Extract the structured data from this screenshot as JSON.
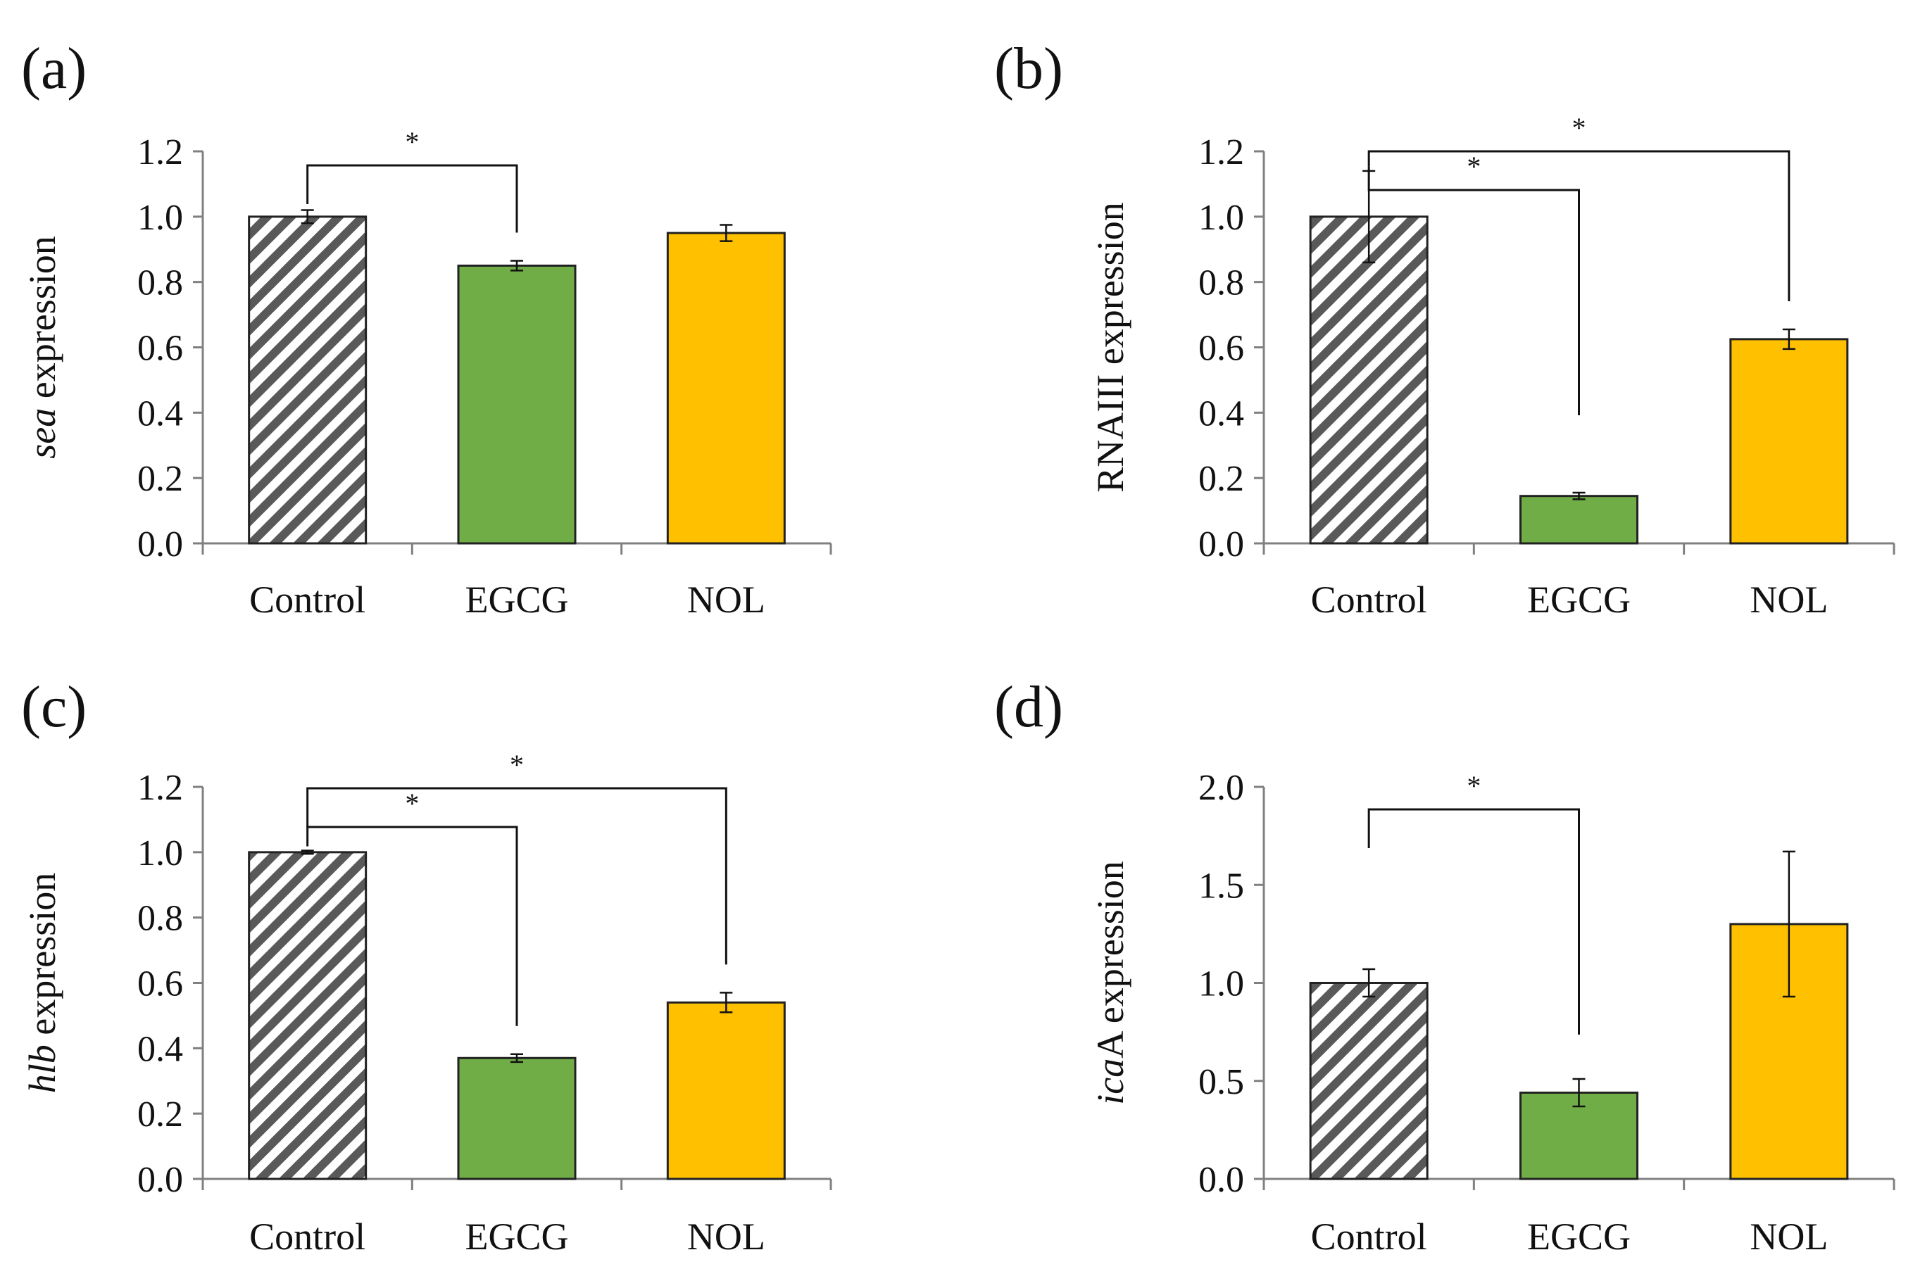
{
  "colors": {
    "control_stripe_dark": "#595959",
    "control_stripe_light": "#ffffff",
    "egcg": "#70ad47",
    "nol": "#ffc000"
  },
  "chart_data": [
    {
      "type": "bar",
      "panel": "(a)",
      "ylabel_italic": "sea",
      "ylabel_rest": " expression",
      "categories": [
        "Control",
        "EGCG",
        "NOL"
      ],
      "values": [
        1.0,
        0.85,
        0.95
      ],
      "errors": [
        0.02,
        0.015,
        0.025
      ],
      "ylim": [
        0,
        1.2
      ],
      "yticks": [
        0.0,
        0.2,
        0.4,
        0.6,
        0.8,
        1.0,
        1.2
      ],
      "tick_labels": [
        "0.0",
        "0.2",
        "0.4",
        "0.6",
        "0.8",
        "1.0",
        "1.2"
      ],
      "significance": [
        {
          "from": 0,
          "to": 1,
          "label": "*"
        }
      ]
    },
    {
      "type": "bar",
      "panel": "(b)",
      "ylabel_italic": "",
      "ylabel_rest": "RNAIII expression",
      "categories": [
        "Control",
        "EGCG",
        "NOL"
      ],
      "values": [
        1.0,
        0.145,
        0.625
      ],
      "errors": [
        0.14,
        0.01,
        0.03
      ],
      "ylim": [
        0,
        1.2
      ],
      "yticks": [
        0.0,
        0.2,
        0.4,
        0.6,
        0.8,
        1.0,
        1.2
      ],
      "tick_labels": [
        "0.0",
        "0.2",
        "0.4",
        "0.6",
        "0.8",
        "1.0",
        "1.2"
      ],
      "significance": [
        {
          "from": 0,
          "to": 1,
          "label": "*"
        },
        {
          "from": 0,
          "to": 2,
          "label": "*"
        }
      ]
    },
    {
      "type": "bar",
      "panel": "(c)",
      "ylabel_italic": "hlb",
      "ylabel_rest": " expression",
      "categories": [
        "Control",
        "EGCG",
        "NOL"
      ],
      "values": [
        1.0,
        0.37,
        0.54
      ],
      "errors": [
        0.005,
        0.012,
        0.03
      ],
      "ylim": [
        0,
        1.2
      ],
      "yticks": [
        0.0,
        0.2,
        0.4,
        0.6,
        0.8,
        1.0,
        1.2
      ],
      "tick_labels": [
        "0.0",
        "0.2",
        "0.4",
        "0.6",
        "0.8",
        "1.0",
        "1.2"
      ],
      "significance": [
        {
          "from": 0,
          "to": 1,
          "label": "*"
        },
        {
          "from": 0,
          "to": 2,
          "label": "*"
        }
      ]
    },
    {
      "type": "bar",
      "panel": "(d)",
      "ylabel_italic": "ica",
      "ylabel_rest": "A expression",
      "categories": [
        "Control",
        "EGCG",
        "NOL"
      ],
      "values": [
        1.0,
        0.44,
        1.3
      ],
      "errors": [
        0.07,
        0.07,
        0.37
      ],
      "ylim": [
        0,
        2.0
      ],
      "yticks": [
        0.0,
        0.5,
        1.0,
        1.5,
        2.0
      ],
      "tick_labels": [
        "0.0",
        "0.5",
        "1.0",
        "1.5",
        "2.0"
      ],
      "significance": [
        {
          "from": 0,
          "to": 1,
          "label": "*"
        }
      ]
    }
  ]
}
